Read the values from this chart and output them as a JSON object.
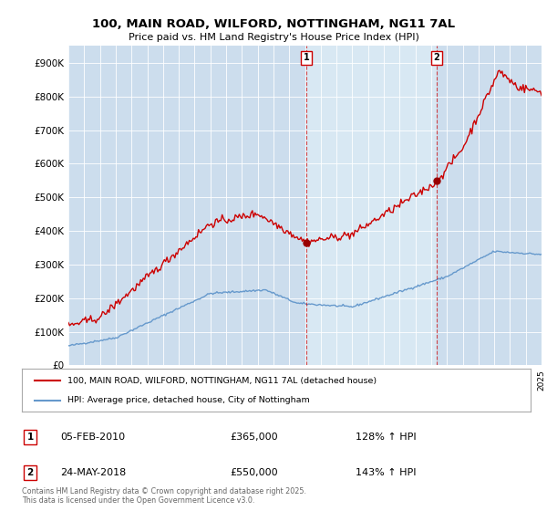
{
  "title_line1": "100, MAIN ROAD, WILFORD, NOTTINGHAM, NG11 7AL",
  "title_line2": "Price paid vs. HM Land Registry's House Price Index (HPI)",
  "bg_color": "#ccdded",
  "bg_color_highlight": "#d8e8f3",
  "red_color": "#cc0000",
  "blue_color": "#6699cc",
  "marker1_date": "05-FEB-2010",
  "marker1_price": "£365,000",
  "marker1_hpi": "128% ↑ HPI",
  "marker2_date": "24-MAY-2018",
  "marker2_price": "£550,000",
  "marker2_hpi": "143% ↑ HPI",
  "legend_line1": "100, MAIN ROAD, WILFORD, NOTTINGHAM, NG11 7AL (detached house)",
  "legend_line2": "HPI: Average price, detached house, City of Nottingham",
  "footer": "Contains HM Land Registry data © Crown copyright and database right 2025.\nThis data is licensed under the Open Government Licence v3.0.",
  "ylim": [
    0,
    950000
  ],
  "yticks": [
    0,
    100000,
    200000,
    300000,
    400000,
    500000,
    600000,
    700000,
    800000,
    900000
  ],
  "start_year": 1995,
  "end_year": 2025
}
